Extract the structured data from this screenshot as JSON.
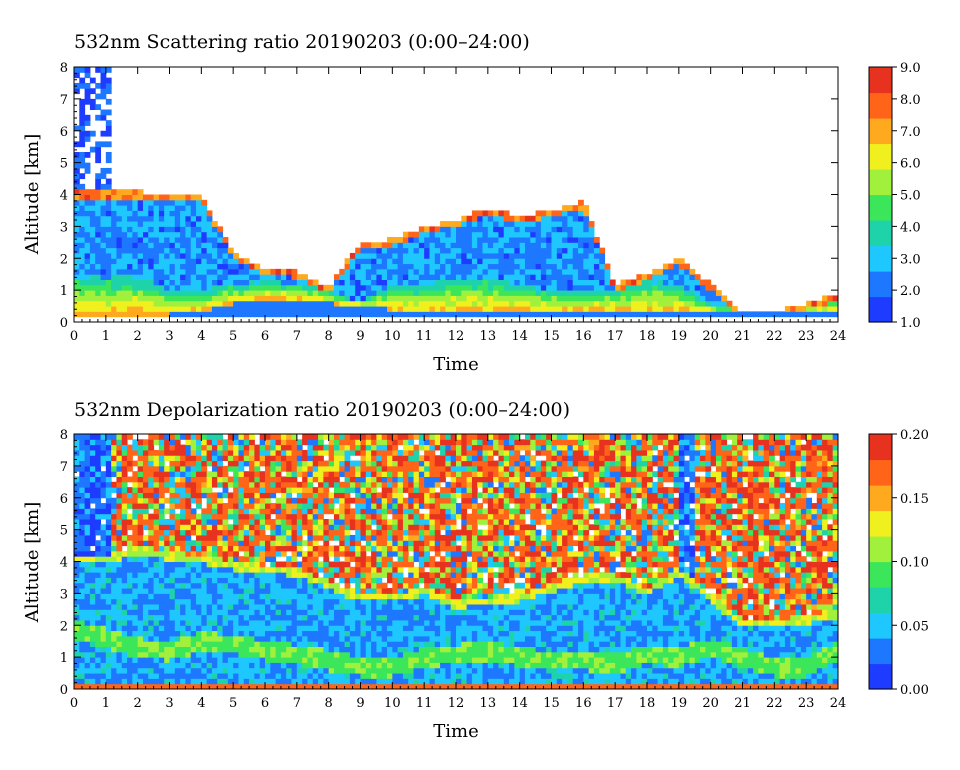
{
  "colors": {
    "colormap": [
      "#1e3cff",
      "#1e78ff",
      "#1ec8ff",
      "#1ed2aa",
      "#3ce65a",
      "#a0f03c",
      "#f0f01e",
      "#ffaa1e",
      "#ff6419",
      "#e6321e"
    ]
  },
  "chart_data": [
    {
      "type": "heatmap",
      "title": "532nm Scattering ratio  20190203 (0:00–24:00)",
      "xlabel": "Time",
      "ylabel": "Altitude [km]",
      "xlim": [
        0,
        24
      ],
      "ylim": [
        0,
        8
      ],
      "xticks": [
        "0",
        "1",
        "2",
        "3",
        "4",
        "5",
        "6",
        "7",
        "8",
        "9",
        "10",
        "11",
        "12",
        "13",
        "14",
        "15",
        "16",
        "17",
        "18",
        "19",
        "20",
        "21",
        "22",
        "23",
        "24"
      ],
      "yticks": [
        "0",
        "1",
        "2",
        "3",
        "4",
        "5",
        "6",
        "7",
        "8"
      ],
      "colorbar": {
        "range": [
          1.0,
          9.0
        ],
        "ticks": [
          "1.0",
          "2.0",
          "3.0",
          "4.0",
          "5.0",
          "6.0",
          "7.0",
          "8.0",
          "9.0"
        ]
      },
      "features": {
        "cloud_top_km": [
          4.1,
          4.1,
          4.1,
          4.0,
          4.0,
          2.2,
          1.7,
          1.6,
          1.1,
          2.5,
          2.6,
          3.0,
          3.2,
          3.6,
          3.3,
          3.5,
          3.8,
          1.2,
          1.5,
          2.0,
          1.2,
          0.3,
          0.3,
          0.6,
          0.9
        ],
        "cloud_base_km": [
          0.25,
          0.25,
          0.25,
          0.25,
          0.3,
          0.6,
          0.7,
          0.7,
          0.6,
          0.5,
          0.4,
          0.3,
          0.3,
          0.3,
          0.3,
          0.3,
          0.3,
          0.3,
          0.3,
          0.3,
          0.3,
          0.3,
          0.3,
          0.3,
          0.3
        ],
        "high_signal_top_km": [
          1.5,
          1.4,
          1.5,
          1.0,
          1.0,
          1.2,
          1.3,
          1.2,
          1.0,
          0.6,
          1.2,
          1.2,
          1.4,
          1.4,
          1.2,
          1.0,
          1.0,
          1.0,
          1.3,
          1.2,
          0.6,
          0.4,
          0.4,
          0.6,
          0.8
        ]
      }
    },
    {
      "type": "heatmap",
      "title": "532nm Depolarization ratio  20190203 (0:00–24:00)",
      "xlabel": "Time",
      "ylabel": "Altitude [km]",
      "xlim": [
        0,
        24
      ],
      "ylim": [
        0,
        8
      ],
      "xticks": [
        "0",
        "1",
        "2",
        "3",
        "4",
        "5",
        "6",
        "7",
        "8",
        "9",
        "10",
        "11",
        "12",
        "13",
        "14",
        "15",
        "16",
        "17",
        "18",
        "19",
        "20",
        "21",
        "22",
        "23",
        "24"
      ],
      "yticks": [
        "0",
        "1",
        "2",
        "3",
        "4",
        "5",
        "6",
        "7",
        "8"
      ],
      "colorbar": {
        "range": [
          0.0,
          0.2
        ],
        "ticks": [
          "0.00",
          "0.05",
          "0.10",
          "0.15",
          "0.20"
        ]
      },
      "features": {
        "noise_onset_km": [
          4.2,
          4.2,
          4.5,
          4.3,
          4.2,
          4.0,
          3.9,
          3.8,
          3.4,
          3.0,
          3.0,
          3.2,
          2.8,
          2.9,
          3.0,
          3.3,
          3.6,
          3.6,
          3.2,
          3.8,
          3.0,
          2.2,
          2.2,
          2.3,
          2.5
        ],
        "aerosol_layer_top_km": [
          2.2,
          1.9,
          1.6,
          1.5,
          1.8,
          1.7,
          1.5,
          1.4,
          1.2,
          1.0,
          1.0,
          1.3,
          1.4,
          1.5,
          1.3,
          1.2,
          1.2,
          1.1,
          1.4,
          1.3,
          1.6,
          1.3,
          1.0,
          1.0,
          1.5
        ]
      }
    }
  ]
}
